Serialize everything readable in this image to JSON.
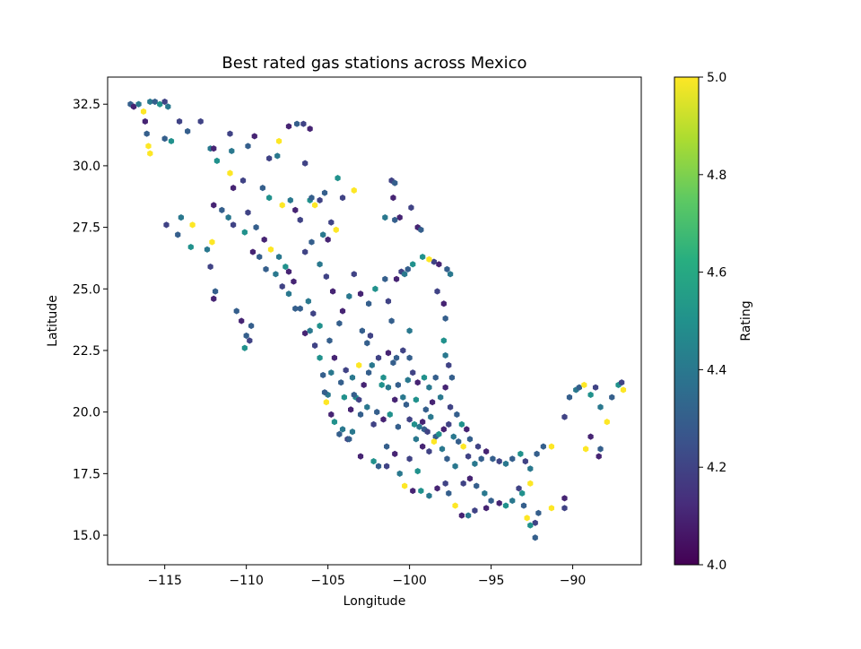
{
  "chart_data": {
    "type": "hexbin",
    "title": "Best rated gas stations across Mexico",
    "xlabel": "Longitude",
    "ylabel": "Latitude",
    "xlim": [
      -118.5,
      -85.8
    ],
    "ylim": [
      13.8,
      33.6
    ],
    "xticks": [
      -115,
      -110,
      -105,
      -100,
      -95,
      -90
    ],
    "xtick_labels": [
      "−115",
      "−110",
      "−105",
      "−100",
      "−95",
      "−90"
    ],
    "yticks": [
      15.0,
      17.5,
      20.0,
      22.5,
      25.0,
      27.5,
      30.0,
      32.5
    ],
    "ytick_labels": [
      "15.0",
      "17.5",
      "20.0",
      "22.5",
      "25.0",
      "27.5",
      "30.0",
      "32.5"
    ],
    "colormap": "viridis",
    "colorbar": {
      "label": "Rating",
      "range": [
        4.0,
        5.0
      ],
      "ticks": [
        4.0,
        4.2,
        4.4,
        4.6,
        4.8,
        5.0
      ],
      "tick_labels": [
        "4.0",
        "4.2",
        "4.4",
        "4.6",
        "4.8",
        "5.0"
      ]
    },
    "points": [
      [
        -117.1,
        32.5,
        4.3
      ],
      [
        -116.9,
        32.4,
        4.1
      ],
      [
        -116.6,
        32.5,
        4.4
      ],
      [
        -116.3,
        32.2,
        5.0
      ],
      [
        -115.9,
        32.6,
        4.4
      ],
      [
        -115.6,
        32.6,
        4.3
      ],
      [
        -115.3,
        32.5,
        4.5
      ],
      [
        -115.0,
        32.6,
        4.2
      ],
      [
        -114.8,
        32.4,
        4.4
      ],
      [
        -116.2,
        31.8,
        4.1
      ],
      [
        -116.0,
        30.8,
        5.0
      ],
      [
        -115.9,
        30.5,
        5.0
      ],
      [
        -116.1,
        31.3,
        4.3
      ],
      [
        -114.1,
        31.8,
        4.2
      ],
      [
        -113.6,
        31.4,
        4.3
      ],
      [
        -112.8,
        31.8,
        4.2
      ],
      [
        -112.2,
        30.7,
        4.4
      ],
      [
        -112.0,
        30.7,
        4.1
      ],
      [
        -111.8,
        30.2,
        4.5
      ],
      [
        -111.0,
        31.3,
        4.2
      ],
      [
        -110.9,
        30.6,
        4.4
      ],
      [
        -111.0,
        29.7,
        5.0
      ],
      [
        -110.8,
        29.1,
        4.1
      ],
      [
        -110.2,
        29.4,
        4.2
      ],
      [
        -109.9,
        30.8,
        4.3
      ],
      [
        -109.5,
        31.2,
        4.1
      ],
      [
        -108.6,
        30.3,
        4.2
      ],
      [
        -108.0,
        31.0,
        5.0
      ],
      [
        -108.1,
        30.4,
        4.4
      ],
      [
        -107.4,
        31.6,
        4.1
      ],
      [
        -106.9,
        31.7,
        4.3
      ],
      [
        -106.5,
        31.7,
        4.2
      ],
      [
        -106.1,
        31.5,
        4.1
      ],
      [
        -106.4,
        30.1,
        4.2
      ],
      [
        -106.1,
        28.6,
        4.5
      ],
      [
        -106.0,
        28.7,
        4.3
      ],
      [
        -105.8,
        28.4,
        5.0
      ],
      [
        -105.5,
        28.6,
        4.2
      ],
      [
        -105.2,
        28.9,
        4.3
      ],
      [
        -104.4,
        29.5,
        4.5
      ],
      [
        -104.1,
        28.7,
        4.2
      ],
      [
        -103.4,
        29.0,
        5.0
      ],
      [
        -107.3,
        28.6,
        4.4
      ],
      [
        -107.0,
        28.2,
        4.1
      ],
      [
        -106.7,
        27.8,
        4.2
      ],
      [
        -107.8,
        28.4,
        5.0
      ],
      [
        -108.6,
        28.7,
        4.5
      ],
      [
        -109.0,
        29.1,
        4.3
      ],
      [
        -109.9,
        28.1,
        4.2
      ],
      [
        -109.4,
        27.5,
        4.3
      ],
      [
        -108.9,
        27.0,
        4.1
      ],
      [
        -108.5,
        26.6,
        5.0
      ],
      [
        -108.0,
        26.3,
        4.4
      ],
      [
        -107.6,
        25.9,
        4.5
      ],
      [
        -107.8,
        25.1,
        4.2
      ],
      [
        -107.4,
        24.8,
        4.4
      ],
      [
        -107.0,
        24.2,
        4.3
      ],
      [
        -106.4,
        23.2,
        4.1
      ],
      [
        -106.1,
        23.3,
        4.4
      ],
      [
        -105.8,
        22.7,
        4.2
      ],
      [
        -105.5,
        22.2,
        4.5
      ],
      [
        -105.3,
        21.5,
        4.3
      ],
      [
        -105.0,
        20.7,
        4.4
      ],
      [
        -104.8,
        19.9,
        4.1
      ],
      [
        -104.3,
        19.1,
        4.3
      ],
      [
        -103.8,
        18.9,
        4.2
      ],
      [
        -103.5,
        19.2,
        4.4
      ],
      [
        -103.3,
        20.6,
        4.5
      ],
      [
        -103.4,
        20.7,
        4.3
      ],
      [
        -103.1,
        20.5,
        4.2
      ],
      [
        -102.8,
        21.1,
        4.1
      ],
      [
        -102.3,
        21.9,
        4.4
      ],
      [
        -102.6,
        22.8,
        4.3
      ],
      [
        -101.9,
        22.2,
        4.2
      ],
      [
        -101.7,
        21.1,
        4.5
      ],
      [
        -101.3,
        21.0,
        4.4
      ],
      [
        -101.0,
        22.0,
        4.3
      ],
      [
        -100.9,
        20.5,
        4.1
      ],
      [
        -100.4,
        20.6,
        4.4
      ],
      [
        -100.2,
        20.3,
        4.3
      ],
      [
        -100.0,
        19.7,
        4.2
      ],
      [
        -99.7,
        19.5,
        4.5
      ],
      [
        -99.4,
        19.4,
        4.4
      ],
      [
        -99.1,
        19.3,
        4.3
      ],
      [
        -99.2,
        19.6,
        4.1
      ],
      [
        -98.9,
        19.2,
        4.2
      ],
      [
        -98.7,
        19.8,
        4.4
      ],
      [
        -98.4,
        19.0,
        4.3
      ],
      [
        -98.2,
        19.1,
        4.5
      ],
      [
        -97.9,
        19.3,
        4.1
      ],
      [
        -97.6,
        19.5,
        4.2
      ],
      [
        -97.3,
        19.0,
        4.4
      ],
      [
        -97.0,
        18.8,
        4.3
      ],
      [
        -96.7,
        18.6,
        5.0
      ],
      [
        -96.4,
        18.2,
        4.2
      ],
      [
        -96.0,
        17.9,
        4.4
      ],
      [
        -95.6,
        18.1,
        4.3
      ],
      [
        -95.3,
        18.4,
        4.1
      ],
      [
        -94.9,
        18.1,
        4.3
      ],
      [
        -94.5,
        18.0,
        4.2
      ],
      [
        -94.1,
        17.9,
        4.4
      ],
      [
        -93.7,
        18.1,
        4.3
      ],
      [
        -93.2,
        18.3,
        4.5
      ],
      [
        -92.9,
        18.0,
        4.2
      ],
      [
        -92.6,
        17.7,
        4.4
      ],
      [
        -92.2,
        18.3,
        4.3
      ],
      [
        -91.8,
        18.6,
        4.3
      ],
      [
        -91.3,
        18.6,
        5.0
      ],
      [
        -90.5,
        19.8,
        4.2
      ],
      [
        -90.2,
        20.6,
        4.3
      ],
      [
        -89.8,
        20.9,
        4.4
      ],
      [
        -89.6,
        21.0,
        4.3
      ],
      [
        -89.3,
        21.1,
        5.0
      ],
      [
        -88.9,
        20.7,
        4.5
      ],
      [
        -88.6,
        21.0,
        4.2
      ],
      [
        -88.3,
        20.2,
        4.4
      ],
      [
        -87.6,
        20.6,
        4.3
      ],
      [
        -87.2,
        21.1,
        4.5
      ],
      [
        -87.0,
        21.2,
        4.2
      ],
      [
        -86.9,
        20.9,
        5.0
      ],
      [
        -87.9,
        19.6,
        5.0
      ],
      [
        -88.3,
        18.5,
        4.3
      ],
      [
        -88.4,
        18.2,
        4.1
      ],
      [
        -88.9,
        19.0,
        4.1
      ],
      [
        -89.2,
        18.5,
        5.0
      ],
      [
        -90.5,
        16.5,
        4.1
      ],
      [
        -90.5,
        16.1,
        4.2
      ],
      [
        -91.3,
        16.1,
        5.0
      ],
      [
        -92.1,
        15.9,
        4.3
      ],
      [
        -92.3,
        15.5,
        4.2
      ],
      [
        -92.3,
        14.9,
        4.3
      ],
      [
        -92.6,
        15.4,
        4.5
      ],
      [
        -92.8,
        15.7,
        5.0
      ],
      [
        -93.0,
        16.2,
        4.3
      ],
      [
        -93.1,
        16.7,
        4.5
      ],
      [
        -93.3,
        16.9,
        4.2
      ],
      [
        -92.6,
        17.1,
        5.0
      ],
      [
        -93.7,
        16.4,
        4.4
      ],
      [
        -94.1,
        16.2,
        4.5
      ],
      [
        -94.5,
        16.3,
        4.1
      ],
      [
        -95.0,
        16.4,
        4.3
      ],
      [
        -95.3,
        16.1,
        4.1
      ],
      [
        -96.0,
        16.0,
        4.2
      ],
      [
        -96.4,
        15.8,
        4.4
      ],
      [
        -96.8,
        15.8,
        4.1
      ],
      [
        -97.2,
        16.2,
        5.0
      ],
      [
        -97.6,
        16.7,
        4.3
      ],
      [
        -97.8,
        17.1,
        4.2
      ],
      [
        -98.3,
        16.9,
        4.1
      ],
      [
        -98.8,
        16.6,
        4.4
      ],
      [
        -99.3,
        16.8,
        4.5
      ],
      [
        -99.8,
        16.8,
        4.1
      ],
      [
        -100.3,
        17.0,
        5.0
      ],
      [
        -100.6,
        17.5,
        4.4
      ],
      [
        -101.4,
        17.8,
        4.2
      ],
      [
        -101.9,
        17.8,
        4.3
      ],
      [
        -102.2,
        18.0,
        4.5
      ],
      [
        -103.0,
        18.2,
        4.1
      ],
      [
        -103.7,
        18.9,
        4.3
      ],
      [
        -104.1,
        19.3,
        4.4
      ],
      [
        -104.6,
        19.6,
        4.5
      ],
      [
        -105.1,
        20.4,
        5.0
      ],
      [
        -105.2,
        20.8,
        4.3
      ],
      [
        -100.5,
        25.7,
        4.2
      ],
      [
        -100.3,
        25.6,
        4.4
      ],
      [
        -100.1,
        25.8,
        4.3
      ],
      [
        -99.8,
        26.0,
        4.5
      ],
      [
        -99.5,
        27.5,
        4.1
      ],
      [
        -99.3,
        27.4,
        4.3
      ],
      [
        -99.9,
        28.3,
        4.2
      ],
      [
        -100.6,
        27.9,
        4.1
      ],
      [
        -100.9,
        27.8,
        4.3
      ],
      [
        -101.5,
        27.9,
        4.4
      ],
      [
        -101.1,
        29.4,
        4.2
      ],
      [
        -100.9,
        29.3,
        4.3
      ],
      [
        -101.0,
        28.7,
        4.1
      ],
      [
        -98.5,
        26.1,
        4.2
      ],
      [
        -98.2,
        26.0,
        4.1
      ],
      [
        -97.7,
        25.8,
        4.3
      ],
      [
        -97.5,
        25.6,
        4.4
      ],
      [
        -98.8,
        26.2,
        5.0
      ],
      [
        -99.2,
        26.3,
        4.5
      ],
      [
        -98.3,
        24.9,
        4.2
      ],
      [
        -97.9,
        24.4,
        4.1
      ],
      [
        -97.8,
        23.8,
        4.3
      ],
      [
        -97.9,
        22.9,
        4.5
      ],
      [
        -97.8,
        22.3,
        4.4
      ],
      [
        -97.6,
        21.9,
        4.2
      ],
      [
        -97.4,
        21.4,
        4.3
      ],
      [
        -97.8,
        21.0,
        4.1
      ],
      [
        -98.4,
        21.4,
        4.3
      ],
      [
        -98.8,
        21.0,
        4.4
      ],
      [
        -99.1,
        21.4,
        4.5
      ],
      [
        -99.5,
        21.2,
        4.1
      ],
      [
        -99.8,
        21.6,
        4.2
      ],
      [
        -100.0,
        22.2,
        4.3
      ],
      [
        -100.4,
        22.5,
        4.2
      ],
      [
        -100.8,
        22.2,
        4.3
      ],
      [
        -100.0,
        23.3,
        4.4
      ],
      [
        -101.1,
        23.7,
        4.3
      ],
      [
        -101.3,
        24.5,
        4.2
      ],
      [
        -100.8,
        25.4,
        4.1
      ],
      [
        -101.5,
        25.4,
        4.3
      ],
      [
        -102.1,
        25.0,
        4.5
      ],
      [
        -102.5,
        24.4,
        4.3
      ],
      [
        -103.0,
        24.8,
        4.1
      ],
      [
        -103.4,
        25.6,
        4.2
      ],
      [
        -103.7,
        24.7,
        4.4
      ],
      [
        -104.1,
        24.1,
        4.1
      ],
      [
        -104.3,
        23.6,
        4.3
      ],
      [
        -104.7,
        24.9,
        4.1
      ],
      [
        -105.1,
        25.5,
        4.2
      ],
      [
        -105.5,
        26.0,
        4.4
      ],
      [
        -105.0,
        27.0,
        4.1
      ],
      [
        -104.5,
        27.4,
        5.0
      ],
      [
        -104.8,
        27.7,
        4.2
      ],
      [
        -105.3,
        27.2,
        4.4
      ],
      [
        -106.0,
        26.9,
        4.3
      ],
      [
        -106.4,
        26.5,
        4.2
      ],
      [
        -107.4,
        25.7,
        4.1
      ],
      [
        -108.2,
        25.6,
        4.4
      ],
      [
        -108.8,
        25.8,
        4.3
      ],
      [
        -109.2,
        26.3,
        4.3
      ],
      [
        -109.6,
        26.5,
        4.1
      ],
      [
        -110.1,
        27.3,
        4.5
      ],
      [
        -110.8,
        27.6,
        4.2
      ],
      [
        -111.1,
        27.9,
        4.4
      ],
      [
        -111.5,
        28.2,
        4.3
      ],
      [
        -112.0,
        28.4,
        4.1
      ],
      [
        -112.1,
        26.9,
        5.0
      ],
      [
        -112.4,
        26.6,
        4.4
      ],
      [
        -112.2,
        25.9,
        4.2
      ],
      [
        -111.9,
        24.9,
        4.3
      ],
      [
        -112.0,
        24.6,
        4.1
      ],
      [
        -110.6,
        24.1,
        4.3
      ],
      [
        -110.3,
        23.7,
        4.1
      ],
      [
        -110.0,
        23.1,
        4.3
      ],
      [
        -109.8,
        22.9,
        4.2
      ],
      [
        -110.1,
        22.6,
        4.5
      ],
      [
        -109.7,
        23.5,
        4.3
      ],
      [
        -114.0,
        27.9,
        4.4
      ],
      [
        -114.2,
        27.2,
        4.3
      ],
      [
        -113.4,
        26.7,
        4.5
      ],
      [
        -113.3,
        27.6,
        5.0
      ],
      [
        -114.9,
        27.6,
        4.2
      ],
      [
        -114.6,
        31.0,
        4.5
      ],
      [
        -115.0,
        31.1,
        4.3
      ],
      [
        -102.6,
        20.2,
        4.4
      ],
      [
        -102.0,
        20.0,
        4.3
      ],
      [
        -101.6,
        19.7,
        4.1
      ],
      [
        -101.2,
        19.9,
        4.5
      ],
      [
        -100.7,
        19.4,
        4.3
      ],
      [
        -102.2,
        19.5,
        4.2
      ],
      [
        -103.0,
        19.9,
        4.3
      ],
      [
        -103.6,
        20.1,
        4.1
      ],
      [
        -104.0,
        20.6,
        4.5
      ],
      [
        -104.2,
        21.2,
        4.3
      ],
      [
        -103.9,
        21.7,
        4.2
      ],
      [
        -103.5,
        21.4,
        4.4
      ],
      [
        -103.1,
        21.9,
        5.0
      ],
      [
        -102.5,
        21.6,
        4.3
      ],
      [
        -101.6,
        21.4,
        4.5
      ],
      [
        -101.3,
        22.4,
        4.1
      ],
      [
        -100.7,
        21.1,
        4.3
      ],
      [
        -100.1,
        21.3,
        4.4
      ],
      [
        -99.6,
        20.5,
        4.5
      ],
      [
        -99.0,
        20.1,
        4.3
      ],
      [
        -98.6,
        20.4,
        4.1
      ],
      [
        -98.1,
        20.6,
        4.4
      ],
      [
        -97.5,
        20.2,
        4.2
      ],
      [
        -97.1,
        19.9,
        4.3
      ],
      [
        -96.8,
        19.5,
        4.5
      ],
      [
        -96.5,
        19.3,
        4.1
      ],
      [
        -96.3,
        18.9,
        4.3
      ],
      [
        -95.8,
        18.6,
        4.2
      ],
      [
        -99.6,
        18.9,
        4.4
      ],
      [
        -99.2,
        18.6,
        4.1
      ],
      [
        -98.8,
        18.4,
        4.2
      ],
      [
        -98.5,
        18.8,
        5.0
      ],
      [
        -98.0,
        18.5,
        4.4
      ],
      [
        -97.7,
        18.1,
        4.3
      ],
      [
        -97.2,
        17.8,
        4.4
      ],
      [
        -96.7,
        17.1,
        4.2
      ],
      [
        -96.3,
        17.3,
        4.1
      ],
      [
        -95.9,
        17.0,
        4.3
      ],
      [
        -95.4,
        16.7,
        4.4
      ],
      [
        -100.9,
        18.3,
        4.1
      ],
      [
        -101.4,
        18.6,
        4.3
      ],
      [
        -100.0,
        18.1,
        4.2
      ],
      [
        -99.5,
        17.6,
        4.5
      ],
      [
        -106.2,
        24.5,
        4.4
      ],
      [
        -106.7,
        24.2,
        4.3
      ],
      [
        -107.1,
        25.3,
        4.1
      ],
      [
        -105.9,
        24.0,
        4.2
      ],
      [
        -105.5,
        23.5,
        4.5
      ],
      [
        -104.9,
        22.9,
        4.3
      ],
      [
        -104.6,
        22.2,
        4.1
      ],
      [
        -104.8,
        21.6,
        4.4
      ],
      [
        -102.9,
        23.3,
        4.3
      ],
      [
        -102.4,
        23.1,
        4.2
      ]
    ]
  }
}
